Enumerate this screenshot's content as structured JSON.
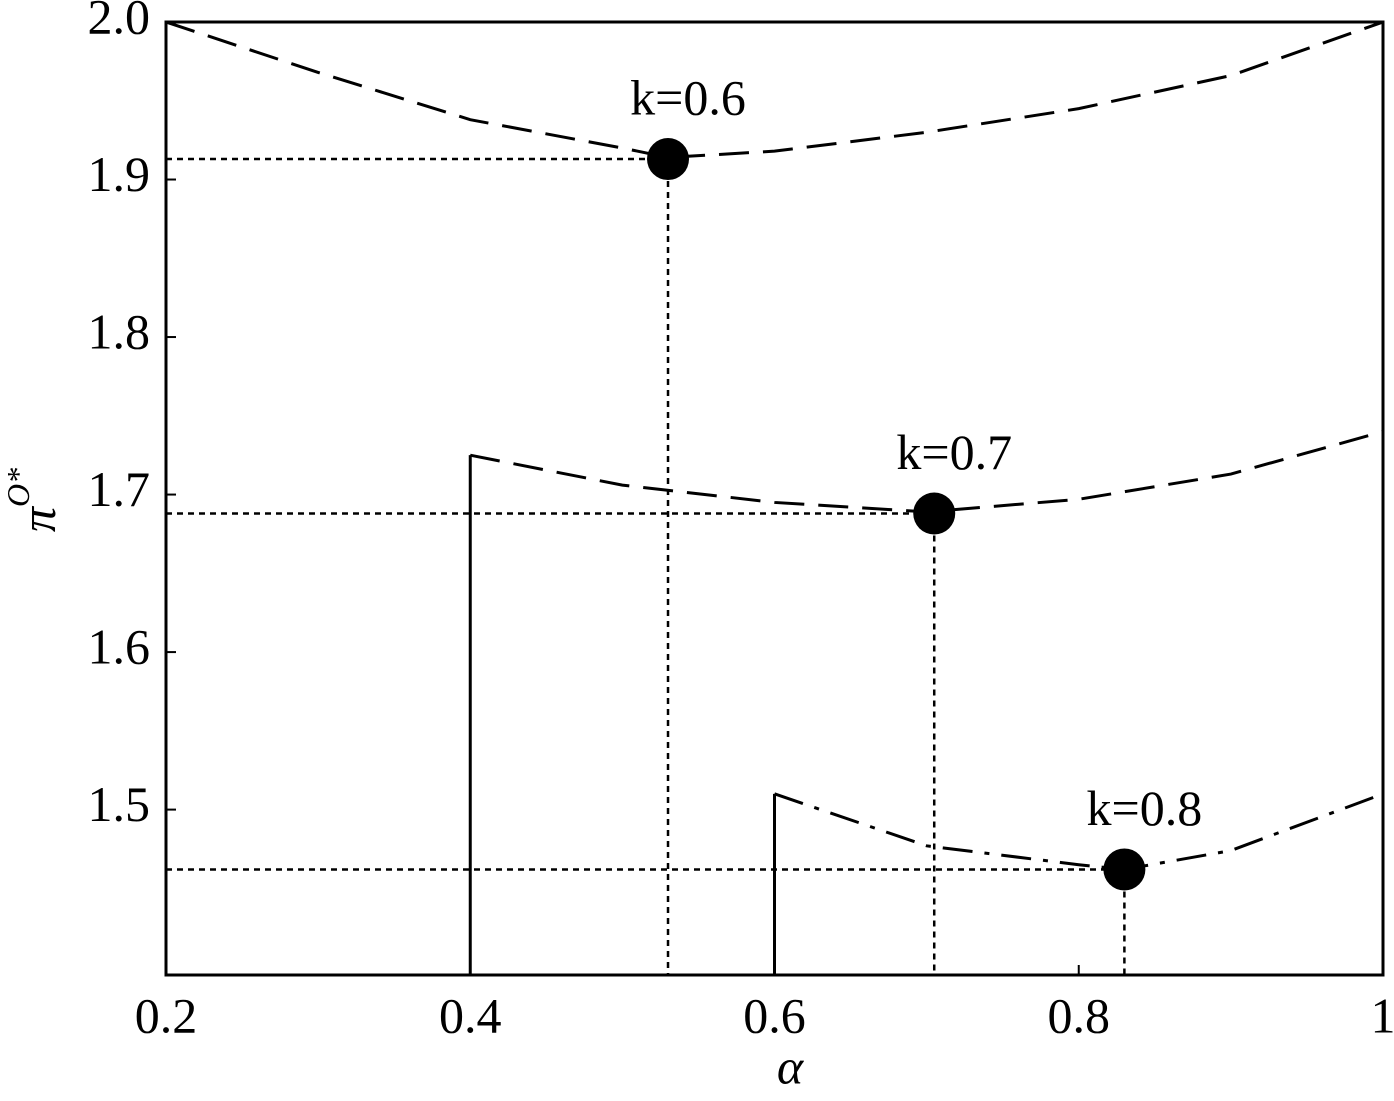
{
  "chart_data": {
    "type": "line",
    "xlabel": "α",
    "ylabel": {
      "base": "π",
      "sup": "O*"
    },
    "xlim": [
      0.2,
      1
    ],
    "ylim": [
      1.395,
      2.0
    ],
    "xticks": [
      0.2,
      0.4,
      0.6,
      0.8,
      1
    ],
    "yticks": [
      1.5,
      1.6,
      1.7,
      1.8,
      1.9,
      {
        "value": 2,
        "label": "2.0"
      }
    ],
    "color": "#000000",
    "series": [
      {
        "style": "dashed",
        "x": [
          0.2,
          0.3,
          0.4,
          0.5,
          0.53,
          0.6,
          0.7,
          0.8,
          0.9,
          1.0
        ],
        "values": [
          2.0,
          1.968,
          1.938,
          1.92,
          1.914,
          1.918,
          1.93,
          1.945,
          1.966,
          2.0
        ]
      },
      {
        "style": "solid",
        "x": [
          0.4,
          0.4
        ],
        "values": [
          1.395,
          1.725
        ]
      },
      {
        "style": "dashed",
        "x": [
          0.4,
          0.5,
          0.6,
          0.7,
          0.8,
          0.9,
          1.0
        ],
        "values": [
          1.725,
          1.706,
          1.695,
          1.689,
          1.697,
          1.713,
          1.74
        ]
      },
      {
        "style": "solid",
        "x": [
          0.6,
          0.6
        ],
        "values": [
          1.395,
          1.51
        ]
      },
      {
        "style": "dashdot",
        "x": [
          0.6,
          0.7,
          0.8,
          0.83,
          0.9,
          1.0
        ],
        "values": [
          1.51,
          1.477,
          1.465,
          1.462,
          1.474,
          1.51
        ]
      }
    ],
    "points": [
      {
        "x": 0.53,
        "y": 1.913,
        "label": "k=0.6"
      },
      {
        "x": 0.705,
        "y": 1.688,
        "label": "k=0.7"
      },
      {
        "x": 0.83,
        "y": 1.462,
        "label": "k=0.8"
      }
    ]
  }
}
